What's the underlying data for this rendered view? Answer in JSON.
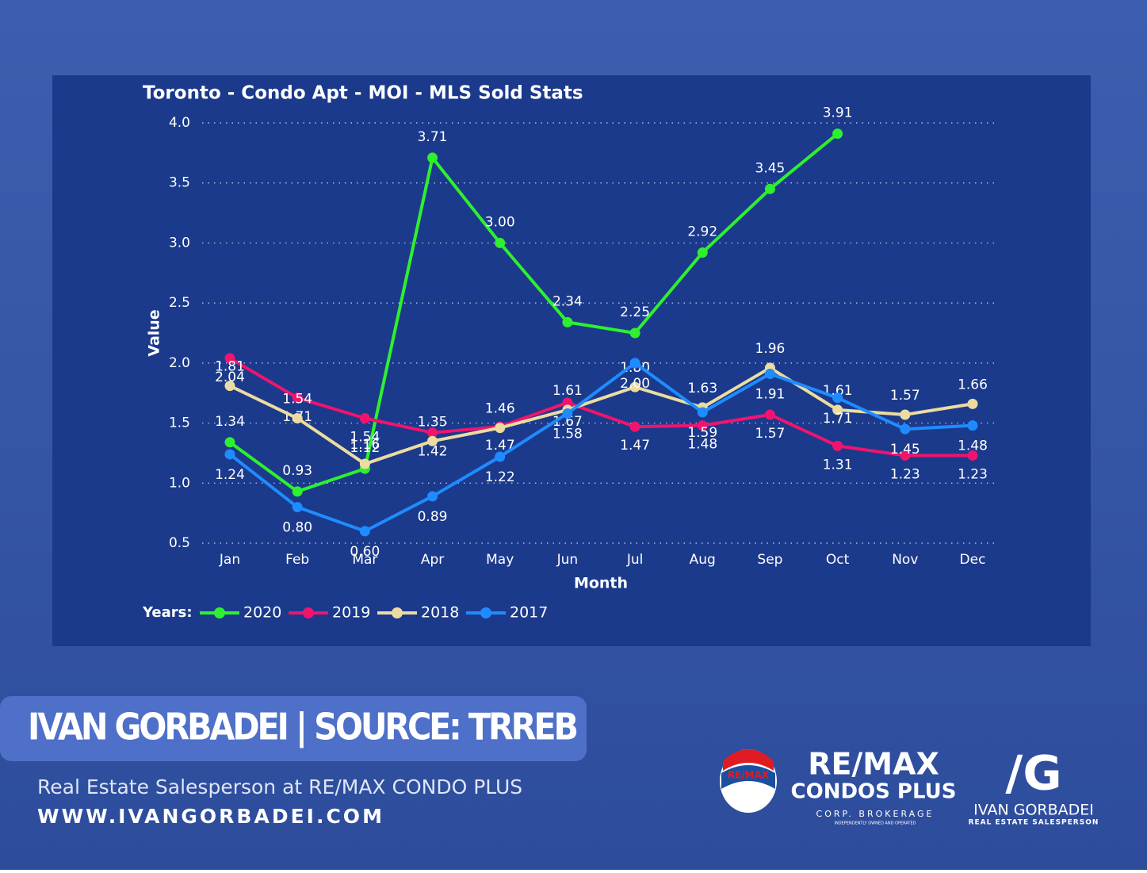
{
  "chart_data": {
    "type": "line",
    "title": "Toronto - Condo Apt - MOI - MLS Sold Stats",
    "x_label": "Month",
    "y_label": "Value",
    "legend_title": "Years:",
    "legend": "bottom-left",
    "grid": true,
    "categories": [
      "Jan",
      "Feb",
      "Mar",
      "Apr",
      "May",
      "Jun",
      "Jul",
      "Aug",
      "Sep",
      "Oct",
      "Nov",
      "Dec"
    ],
    "ylim": [
      0.5,
      4.0
    ],
    "yticks": [
      {
        "value": 0.5,
        "label": "0.5"
      },
      {
        "value": 1,
        "label": "1.0"
      },
      {
        "value": 1.5,
        "label": "1.5"
      },
      {
        "value": 2,
        "label": "2.0"
      },
      {
        "value": 2.5,
        "label": "2.5"
      },
      {
        "value": 3,
        "label": "3.0"
      },
      {
        "value": 3.5,
        "label": "3.5"
      },
      {
        "value": 4,
        "label": "4.0"
      }
    ],
    "series": [
      {
        "name": "2020",
        "color": "#2ef02e",
        "values": [
          1.34,
          0.93,
          1.12,
          3.71,
          3.0,
          2.34,
          2.25,
          2.92,
          3.45,
          3.91,
          null,
          null
        ],
        "value_labels": [
          "1.34",
          "0.93",
          "1.12",
          "3.71",
          "3.00",
          "2.34",
          "2.25",
          "2.92",
          "3.45",
          "3.91",
          null,
          null
        ]
      },
      {
        "name": "2019",
        "color": "#f0146e",
        "values": [
          2.04,
          1.71,
          1.54,
          1.42,
          1.47,
          1.67,
          1.47,
          1.48,
          1.57,
          1.31,
          1.23,
          1.23
        ],
        "value_labels": [
          "2.04",
          "1.71",
          "1.54",
          "1.42",
          "1.47",
          "1.67",
          "1.47",
          "1.48",
          "1.57",
          "1.31",
          "1.23",
          "1.23"
        ]
      },
      {
        "name": "2018",
        "color": "#ecdca0",
        "values": [
          1.81,
          1.54,
          1.16,
          1.35,
          1.46,
          1.61,
          1.8,
          1.63,
          1.96,
          1.61,
          1.57,
          1.66
        ],
        "value_labels": [
          "1.81",
          "1.54",
          "1.16",
          "1.35",
          "1.46",
          "1.61",
          "1.80",
          "1.63",
          "1.96",
          "1.61",
          "1.57",
          "1.66"
        ]
      },
      {
        "name": "2017",
        "color": "#1e8cff",
        "values": [
          1.24,
          0.8,
          0.6,
          0.89,
          1.22,
          1.58,
          2.0,
          1.59,
          1.91,
          1.71,
          1.45,
          1.48
        ],
        "value_labels": [
          "1.24",
          "0.80",
          "0.60",
          "0.89",
          "1.22",
          "1.58",
          "2.00",
          "1.59",
          "1.91",
          "1.71",
          "1.45",
          "1.48"
        ]
      }
    ]
  },
  "branding": {
    "banner": "IVAN GORBADEI | SOURCE: TRREB",
    "subtitle": "Real Estate Salesperson at RE/MAX CONDO PLUS",
    "website": "WWW.IVANGORBADEI.COM",
    "balloon": "RE/MAX",
    "remax_line1": "RE/MAX",
    "remax_line2": "CONDOS PLUS",
    "remax_line3": "CORP. BROKERAGE",
    "remax_line4": "INDEPENDENTLY OWNED AND OPERATED",
    "ig_mark": "/G",
    "ig_name": "IVAN GORBADEI",
    "ig_role": "REAL ESTATE SALESPERSON"
  }
}
